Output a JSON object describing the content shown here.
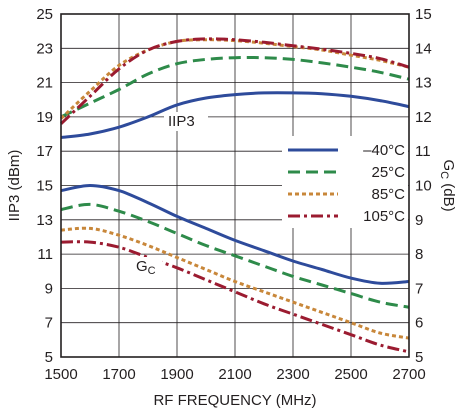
{
  "chart_data": {
    "type": "line",
    "title": "",
    "xlabel": "RF FREQUENCY (MHz)",
    "ylabel_left": "IIP3 (dBm)",
    "ylabel_right": {
      "main": "G",
      "sub": "C",
      "unit": " (dB)"
    },
    "xlim": [
      1500,
      2700
    ],
    "ylim_left": [
      5,
      25
    ],
    "ylim_right": [
      5,
      15
    ],
    "x_ticks": [
      "1500",
      "1700",
      "1900",
      "2100",
      "2300",
      "2500",
      "2700"
    ],
    "y_ticks_left": [
      "5",
      "7",
      "9",
      "11",
      "13",
      "15",
      "17",
      "19",
      "21",
      "23",
      "25"
    ],
    "y_ticks_right": [
      "5",
      "6",
      "7",
      "8",
      "9",
      "10",
      "11",
      "12",
      "13",
      "14",
      "15"
    ],
    "grid": true,
    "legend_position": "right-center",
    "annotations": {
      "iip3": "IIP3",
      "gc": {
        "main": "G",
        "sub": "C"
      }
    },
    "x": [
      1500,
      1600,
      1700,
      1800,
      1900,
      2000,
      2100,
      2200,
      2300,
      2400,
      2500,
      2600,
      2700
    ],
    "series": [
      {
        "name": "–40°C",
        "color": "#2e4b9b",
        "dash": "solid",
        "iip3": [
          17.8,
          18.0,
          18.4,
          19.0,
          19.7,
          20.1,
          20.3,
          20.4,
          20.4,
          20.35,
          20.2,
          19.95,
          19.6
        ],
        "gc": [
          9.85,
          10.0,
          9.85,
          9.5,
          9.1,
          8.75,
          8.4,
          8.1,
          7.8,
          7.55,
          7.3,
          7.15,
          7.2
        ]
      },
      {
        "name": "25°C",
        "color": "#2e8b4a",
        "dash": "long",
        "iip3": [
          19.0,
          19.8,
          20.6,
          21.5,
          22.1,
          22.35,
          22.45,
          22.45,
          22.35,
          22.15,
          21.9,
          21.6,
          21.2
        ],
        "gc": [
          9.3,
          9.45,
          9.25,
          8.95,
          8.6,
          8.25,
          7.95,
          7.65,
          7.35,
          7.1,
          6.85,
          6.6,
          6.45
        ]
      },
      {
        "name": "85°C",
        "color": "#c8873a",
        "dash": "short",
        "iip3": [
          18.9,
          20.5,
          22.0,
          22.9,
          23.4,
          23.5,
          23.45,
          23.3,
          23.1,
          22.9,
          22.6,
          22.3,
          21.9
        ],
        "gc": [
          8.7,
          8.75,
          8.55,
          8.25,
          7.9,
          7.55,
          7.2,
          6.9,
          6.6,
          6.3,
          6.0,
          5.7,
          5.55
        ]
      },
      {
        "name": "105°C",
        "color": "#9b1b30",
        "dash": "dashdot",
        "iip3": [
          18.6,
          20.2,
          21.8,
          22.9,
          23.4,
          23.55,
          23.5,
          23.35,
          23.15,
          22.95,
          22.7,
          22.4,
          21.9
        ],
        "gc": [
          8.35,
          8.35,
          8.2,
          7.9,
          7.6,
          7.25,
          6.9,
          6.55,
          6.25,
          5.95,
          5.65,
          5.35,
          5.15
        ]
      }
    ]
  }
}
